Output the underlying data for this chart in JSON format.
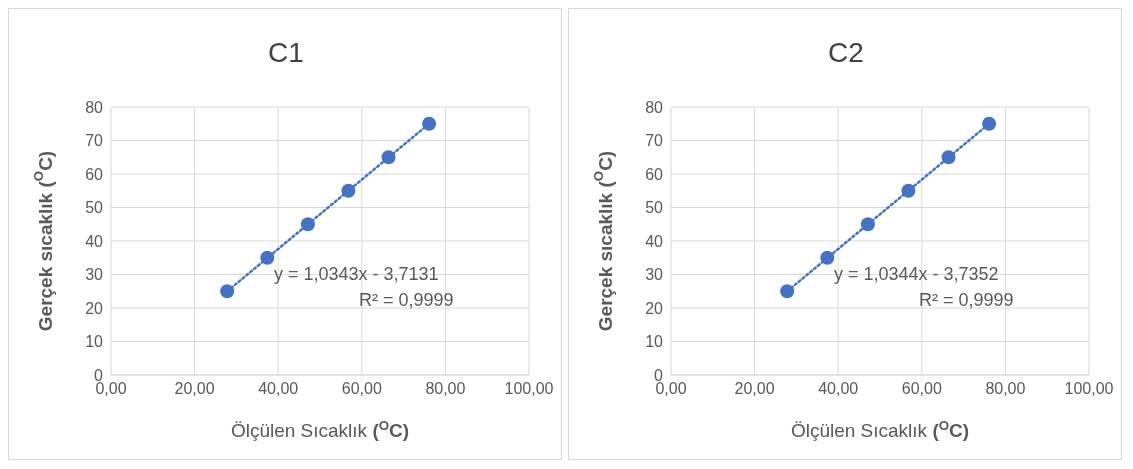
{
  "chart_data": [
    {
      "type": "scatter",
      "title": "C1",
      "xlabel": "Ölçülen Sıcaklık ($^{O}$C)",
      "ylabel": "Gerçek sıcaklık ($^{O}$C)",
      "xlim": [
        0,
        100
      ],
      "xticks": [
        {
          "value": 0,
          "label": "0,00"
        },
        {
          "value": 20,
          "label": "20,00"
        },
        {
          "value": 40,
          "label": "40,00"
        },
        {
          "value": 60,
          "label": "60,00"
        },
        {
          "value": 80,
          "label": "80,00"
        },
        {
          "value": 100,
          "label": "100,00"
        }
      ],
      "ylim": [
        0,
        80
      ],
      "yticks": [
        0,
        10,
        20,
        30,
        40,
        50,
        60,
        70,
        80
      ],
      "grid": true,
      "legend": false,
      "series": [
        {
          "type": "scatter",
          "color": "#4472c4",
          "marker": "circle",
          "x": [
            27.8,
            37.4,
            47.1,
            56.8,
            66.4,
            76.1
          ],
          "values": [
            25,
            35,
            45,
            55,
            65,
            75
          ]
        },
        {
          "type": "line",
          "color": "#4472c4",
          "marker": "none",
          "line_style": "dotted",
          "x": [
            27.8,
            76.1
          ],
          "values": [
            25.0,
            75.0
          ]
        }
      ],
      "annotations": [
        "y = 1,0343x - 3,7131",
        "R² = 0,9999"
      ]
    },
    {
      "type": "scatter",
      "title": "C2",
      "xlabel": "Ölçülen Sıcaklık ($^{O}$C)",
      "ylabel": "Gerçek sıcaklık ($^{O}$C)",
      "xlim": [
        0,
        100
      ],
      "xticks": [
        {
          "value": 0,
          "label": "0,00"
        },
        {
          "value": 20,
          "label": "20,00"
        },
        {
          "value": 40,
          "label": "40,00"
        },
        {
          "value": 60,
          "label": "60,00"
        },
        {
          "value": 80,
          "label": "80,00"
        },
        {
          "value": 100,
          "label": "100,00"
        }
      ],
      "ylim": [
        0,
        80
      ],
      "yticks": [
        0,
        10,
        20,
        30,
        40,
        50,
        60,
        70,
        80
      ],
      "grid": true,
      "legend": false,
      "series": [
        {
          "type": "scatter",
          "color": "#4472c4",
          "marker": "circle",
          "x": [
            27.8,
            37.4,
            47.1,
            56.8,
            66.4,
            76.1
          ],
          "values": [
            25,
            35,
            45,
            55,
            65,
            75
          ]
        },
        {
          "type": "line",
          "color": "#4472c4",
          "marker": "none",
          "line_style": "dotted",
          "x": [
            27.8,
            76.1
          ],
          "values": [
            25.0,
            75.0
          ]
        }
      ],
      "annotations": [
        "y = 1,0344x - 3,7352",
        "R² = 0,9999"
      ]
    }
  ]
}
